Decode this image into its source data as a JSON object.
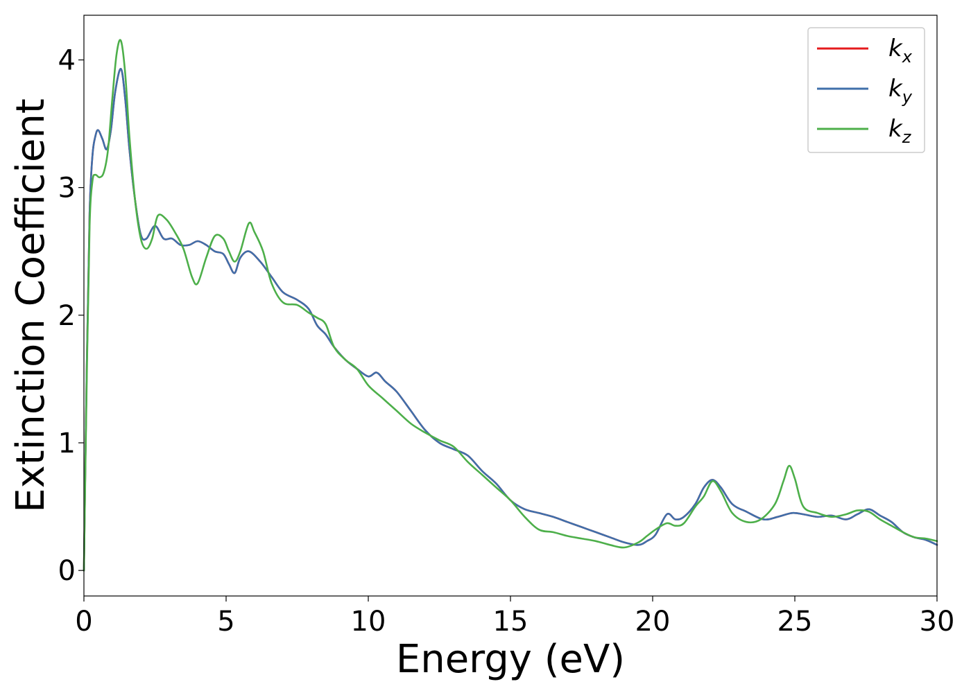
{
  "chart_data": {
    "type": "line",
    "xlabel": "Energy (eV)",
    "ylabel": "Extinction Coefficient",
    "xlim": [
      0,
      30
    ],
    "ylim": [
      -0.2,
      4.35
    ],
    "xticks": [
      0,
      5,
      10,
      15,
      20,
      25,
      30
    ],
    "yticks": [
      0,
      1,
      2,
      3,
      4
    ],
    "grid": false,
    "legend_position": "top-right",
    "series": [
      {
        "name": "k_x",
        "label_main": "k",
        "label_sub": "x",
        "color": "#e41a1c",
        "x": [
          0,
          0.1,
          0.2,
          0.3,
          0.4,
          0.5,
          0.65,
          0.8,
          0.95,
          1.1,
          1.3,
          1.45,
          1.6,
          1.8,
          2.0,
          2.2,
          2.5,
          2.8,
          3.1,
          3.4,
          3.7,
          4.0,
          4.3,
          4.6,
          4.9,
          5.1,
          5.3,
          5.5,
          5.8,
          6.2,
          6.6,
          7.0,
          7.5,
          7.9,
          8.2,
          8.5,
          8.8,
          9.2,
          9.6,
          10.0,
          10.3,
          10.6,
          11.0,
          11.5,
          12.0,
          12.5,
          13.0,
          13.5,
          14.0,
          14.5,
          15.0,
          15.5,
          16.0,
          16.5,
          17.0,
          17.5,
          18.0,
          18.5,
          19.0,
          19.5,
          19.8,
          20.1,
          20.5,
          20.8,
          21.1,
          21.5,
          21.8,
          22.1,
          22.4,
          22.8,
          23.3,
          23.9,
          24.4,
          24.9,
          25.3,
          25.8,
          26.3,
          26.8,
          27.2,
          27.6,
          28.0,
          28.4,
          28.8,
          29.2,
          29.6,
          30.0
        ],
        "values": [
          0,
          1.6,
          2.8,
          3.25,
          3.4,
          3.45,
          3.38,
          3.3,
          3.45,
          3.75,
          3.93,
          3.7,
          3.3,
          2.9,
          2.63,
          2.6,
          2.7,
          2.6,
          2.6,
          2.55,
          2.55,
          2.58,
          2.55,
          2.5,
          2.48,
          2.4,
          2.33,
          2.45,
          2.5,
          2.42,
          2.3,
          2.18,
          2.12,
          2.05,
          1.92,
          1.85,
          1.75,
          1.65,
          1.58,
          1.52,
          1.55,
          1.48,
          1.4,
          1.25,
          1.1,
          1.0,
          0.95,
          0.9,
          0.78,
          0.68,
          0.55,
          0.48,
          0.45,
          0.42,
          0.38,
          0.34,
          0.3,
          0.26,
          0.22,
          0.2,
          0.23,
          0.28,
          0.44,
          0.4,
          0.42,
          0.52,
          0.65,
          0.71,
          0.65,
          0.52,
          0.46,
          0.4,
          0.42,
          0.45,
          0.44,
          0.42,
          0.43,
          0.4,
          0.44,
          0.48,
          0.43,
          0.38,
          0.3,
          0.26,
          0.24,
          0.2
        ]
      },
      {
        "name": "k_y",
        "label_main": "k",
        "label_sub": "y",
        "color": "#3f6faa",
        "x": [
          0,
          0.1,
          0.2,
          0.3,
          0.4,
          0.5,
          0.65,
          0.8,
          0.95,
          1.1,
          1.3,
          1.45,
          1.6,
          1.8,
          2.0,
          2.2,
          2.5,
          2.8,
          3.1,
          3.4,
          3.7,
          4.0,
          4.3,
          4.6,
          4.9,
          5.1,
          5.3,
          5.5,
          5.8,
          6.2,
          6.6,
          7.0,
          7.5,
          7.9,
          8.2,
          8.5,
          8.8,
          9.2,
          9.6,
          10.0,
          10.3,
          10.6,
          11.0,
          11.5,
          12.0,
          12.5,
          13.0,
          13.5,
          14.0,
          14.5,
          15.0,
          15.5,
          16.0,
          16.5,
          17.0,
          17.5,
          18.0,
          18.5,
          19.0,
          19.5,
          19.8,
          20.1,
          20.5,
          20.8,
          21.1,
          21.5,
          21.8,
          22.1,
          22.4,
          22.8,
          23.3,
          23.9,
          24.4,
          24.9,
          25.3,
          25.8,
          26.3,
          26.8,
          27.2,
          27.6,
          28.0,
          28.4,
          28.8,
          29.2,
          29.6,
          30.0
        ],
        "values": [
          0,
          1.6,
          2.8,
          3.25,
          3.4,
          3.45,
          3.38,
          3.3,
          3.45,
          3.75,
          3.93,
          3.7,
          3.3,
          2.9,
          2.63,
          2.6,
          2.7,
          2.6,
          2.6,
          2.55,
          2.55,
          2.58,
          2.55,
          2.5,
          2.48,
          2.4,
          2.33,
          2.45,
          2.5,
          2.42,
          2.3,
          2.18,
          2.12,
          2.05,
          1.92,
          1.85,
          1.75,
          1.65,
          1.58,
          1.52,
          1.55,
          1.48,
          1.4,
          1.25,
          1.1,
          1.0,
          0.95,
          0.9,
          0.78,
          0.68,
          0.55,
          0.48,
          0.45,
          0.42,
          0.38,
          0.34,
          0.3,
          0.26,
          0.22,
          0.2,
          0.23,
          0.28,
          0.44,
          0.4,
          0.42,
          0.52,
          0.65,
          0.71,
          0.65,
          0.52,
          0.46,
          0.4,
          0.42,
          0.45,
          0.44,
          0.42,
          0.43,
          0.4,
          0.44,
          0.48,
          0.43,
          0.38,
          0.3,
          0.26,
          0.24,
          0.2
        ]
      },
      {
        "name": "k_z",
        "label_main": "k",
        "label_sub": "z",
        "color": "#4daf4a",
        "x": [
          0,
          0.1,
          0.2,
          0.3,
          0.4,
          0.55,
          0.7,
          0.85,
          1.0,
          1.15,
          1.3,
          1.45,
          1.6,
          1.8,
          2.0,
          2.2,
          2.4,
          2.6,
          2.9,
          3.2,
          3.5,
          3.8,
          4.0,
          4.3,
          4.6,
          4.9,
          5.1,
          5.3,
          5.5,
          5.8,
          6.0,
          6.3,
          6.6,
          7.0,
          7.5,
          7.9,
          8.2,
          8.5,
          8.8,
          9.2,
          9.6,
          10.0,
          10.5,
          11.0,
          11.5,
          12.0,
          12.5,
          13.0,
          13.5,
          14.0,
          14.5,
          15.0,
          15.5,
          16.0,
          16.5,
          17.0,
          17.5,
          18.0,
          18.5,
          19.0,
          19.5,
          19.8,
          20.1,
          20.5,
          20.8,
          21.1,
          21.5,
          21.8,
          22.1,
          22.4,
          22.8,
          23.3,
          23.8,
          24.3,
          24.6,
          24.8,
          25.0,
          25.3,
          25.8,
          26.3,
          26.8,
          27.2,
          27.6,
          28.0,
          28.4,
          28.8,
          29.2,
          29.6,
          30.0
        ],
        "values": [
          0,
          1.5,
          2.7,
          3.05,
          3.1,
          3.08,
          3.12,
          3.3,
          3.7,
          4.05,
          4.15,
          3.9,
          3.4,
          2.9,
          2.6,
          2.52,
          2.6,
          2.78,
          2.75,
          2.65,
          2.52,
          2.3,
          2.25,
          2.45,
          2.62,
          2.6,
          2.5,
          2.42,
          2.5,
          2.72,
          2.65,
          2.5,
          2.25,
          2.1,
          2.08,
          2.02,
          1.98,
          1.93,
          1.75,
          1.65,
          1.58,
          1.45,
          1.35,
          1.25,
          1.15,
          1.08,
          1.02,
          0.97,
          0.85,
          0.75,
          0.65,
          0.55,
          0.42,
          0.32,
          0.3,
          0.27,
          0.25,
          0.23,
          0.2,
          0.18,
          0.22,
          0.27,
          0.32,
          0.37,
          0.35,
          0.37,
          0.5,
          0.58,
          0.7,
          0.62,
          0.45,
          0.38,
          0.4,
          0.52,
          0.7,
          0.82,
          0.72,
          0.5,
          0.45,
          0.42,
          0.44,
          0.47,
          0.46,
          0.4,
          0.35,
          0.3,
          0.26,
          0.25,
          0.23
        ]
      }
    ]
  }
}
